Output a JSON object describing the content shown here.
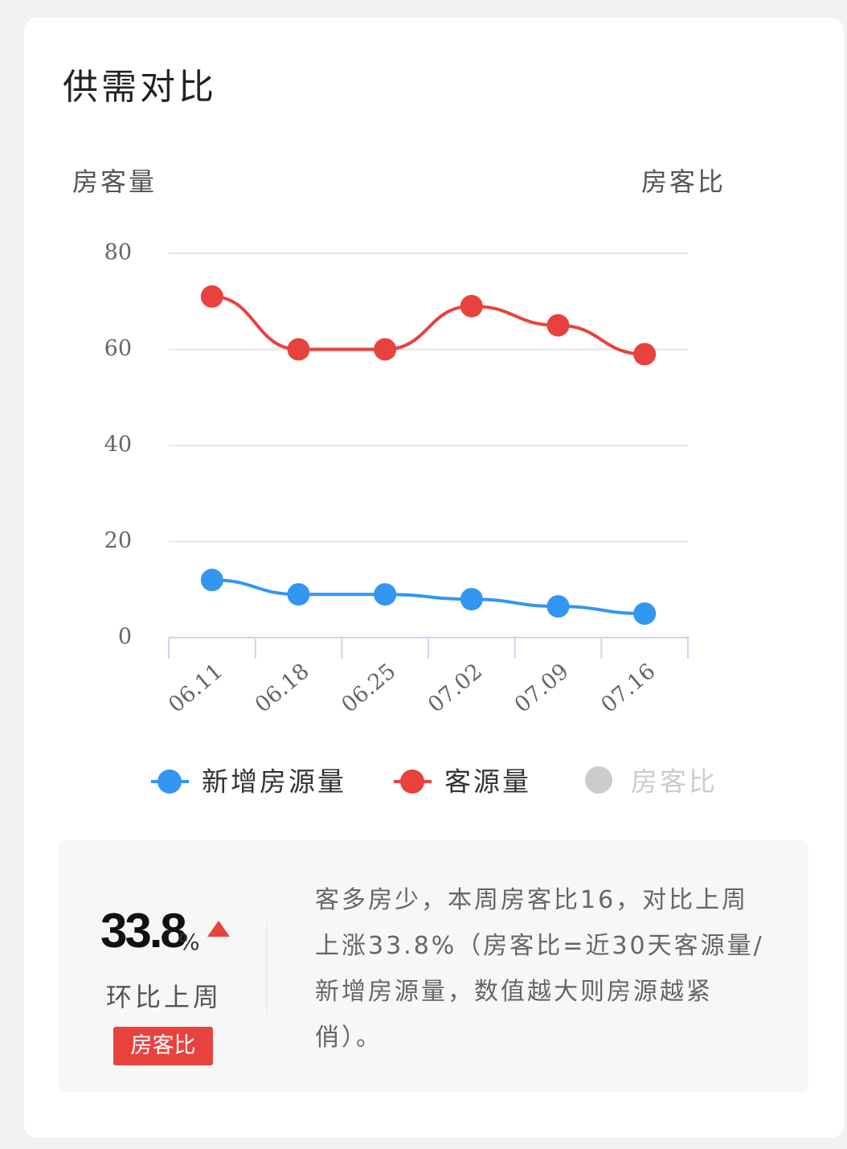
{
  "title": "供需对比",
  "chart_data": {
    "type": "line",
    "y_label": "房客量",
    "y2_label": "房客比",
    "categories": [
      "06.11",
      "06.18",
      "06.25",
      "07.02",
      "07.09",
      "07.16"
    ],
    "series": [
      {
        "name": "新增房源量",
        "color": "#3396f0",
        "values": [
          12,
          9,
          9,
          8,
          6.5,
          5
        ]
      },
      {
        "name": "客源量",
        "color": "#e8423f",
        "values": [
          71,
          60,
          60,
          69,
          65,
          59
        ]
      }
    ],
    "inactive_legend": {
      "name": "房客比",
      "color": "#cccccc"
    },
    "ylim": [
      0,
      80
    ],
    "yticks": [
      0,
      20,
      40,
      60,
      80
    ],
    "grid": true,
    "smooth": true
  },
  "summary": {
    "value": "33.8",
    "unit": "%",
    "compare": "环比上周",
    "tag": "房客比",
    "description": "客多房少，本周房客比16，对比上周上涨33.8%（房客比=近30天客源量/新增房源量，数值越大则房源越紧俏）。"
  }
}
